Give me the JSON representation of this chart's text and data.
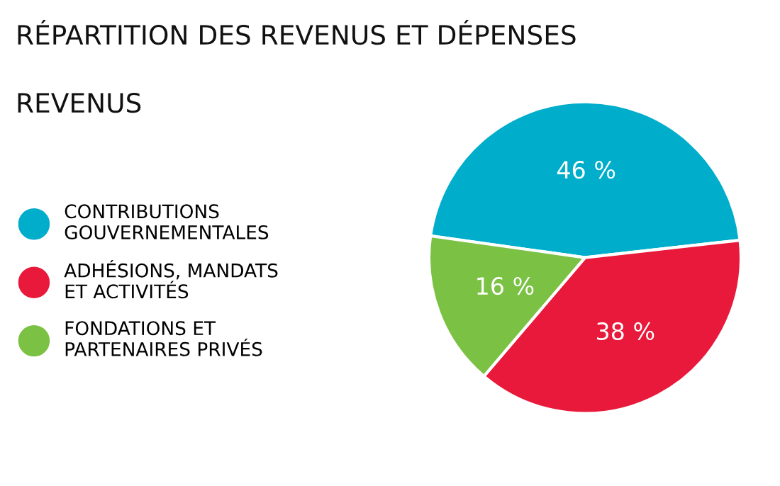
{
  "chart_data": {
    "type": "pie",
    "title": "RÉPARTITION DES REVENUS ET DÉPENSES",
    "subtitle": "REVENUS",
    "categories": [
      "CONTRIBUTIONS\nGOUVERNEMENTALES",
      "ADHÉSIONS, MANDATS\nET ACTIVITÉS",
      "FONDATIONS ET\nPARTENAIRES PRIVÉS"
    ],
    "values": [
      46,
      38,
      16
    ],
    "colors": [
      "#00aecb",
      "#e8193a",
      "#7bc143"
    ],
    "value_labels": [
      "46 %",
      "38 %",
      "16 %"
    ],
    "legend": "left"
  }
}
